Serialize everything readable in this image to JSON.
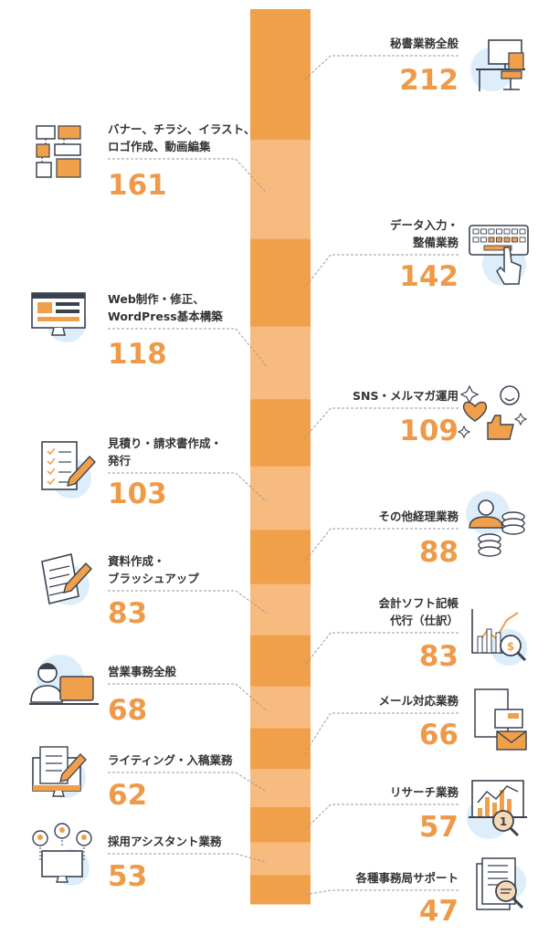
{
  "colors": {
    "dark_orange": "#f0a04b",
    "light_orange": "#f7bb80",
    "value_text": "#ef9a48",
    "label_text": "#333333",
    "leader": "#9a9a9a",
    "icon_bg": "#ddeefa",
    "icon_stroke": "#3a4250"
  },
  "chart_data": {
    "type": "bar",
    "orientation": "stacked-column",
    "categories": [
      {
        "label": [
          "秘書業務全般"
        ],
        "value": "212",
        "side": "right",
        "icon": "office-desk-icon"
      },
      {
        "label": [
          "バナー、チラシ、イラスト、",
          "ロゴ作成、動画編集"
        ],
        "value": "161",
        "side": "left",
        "icon": "design-layout-icon"
      },
      {
        "label": [
          "データ入力・",
          "整備業務"
        ],
        "value": "142",
        "side": "right",
        "icon": "keyboard-typing-icon"
      },
      {
        "label": [
          "Web制作・修正、",
          "WordPress基本構築"
        ],
        "value": "118",
        "side": "left",
        "icon": "web-monitor-icon"
      },
      {
        "label": [
          "SNS・メルマガ運用"
        ],
        "value": "109",
        "side": "right",
        "icon": "sns-like-icon"
      },
      {
        "label": [
          "見積り・請求書作成・",
          "発行"
        ],
        "value": "103",
        "side": "left",
        "icon": "invoice-pen-icon"
      },
      {
        "label": [
          "その他経理業務"
        ],
        "value": "88",
        "side": "right",
        "icon": "accounting-coins-icon"
      },
      {
        "label": [
          "資料作成・",
          "ブラッシュアップ"
        ],
        "value": "83",
        "side": "left",
        "icon": "document-pencil-icon"
      },
      {
        "label": [
          "会計ソフト記帳",
          "代行（仕訳）"
        ],
        "value": "83",
        "side": "right",
        "icon": "finance-chart-icon"
      },
      {
        "label": [
          "営業事務全般"
        ],
        "value": "68",
        "side": "left",
        "icon": "person-laptop-icon"
      },
      {
        "label": [
          "メール対応業務"
        ],
        "value": "66",
        "side": "right",
        "icon": "mail-envelope-icon"
      },
      {
        "label": [
          "ライティング・入稿業務"
        ],
        "value": "62",
        "side": "left",
        "icon": "writing-monitor-icon"
      },
      {
        "label": [
          "リサーチ業務"
        ],
        "value": "57",
        "side": "right",
        "icon": "research-magnifier-icon"
      },
      {
        "label": [
          "採用アシスタント業務"
        ],
        "value": "53",
        "side": "left",
        "icon": "recruit-people-icon"
      },
      {
        "label": [
          "各種事務局サポート"
        ],
        "value": "47",
        "side": "right",
        "icon": "document-search-icon"
      }
    ]
  }
}
